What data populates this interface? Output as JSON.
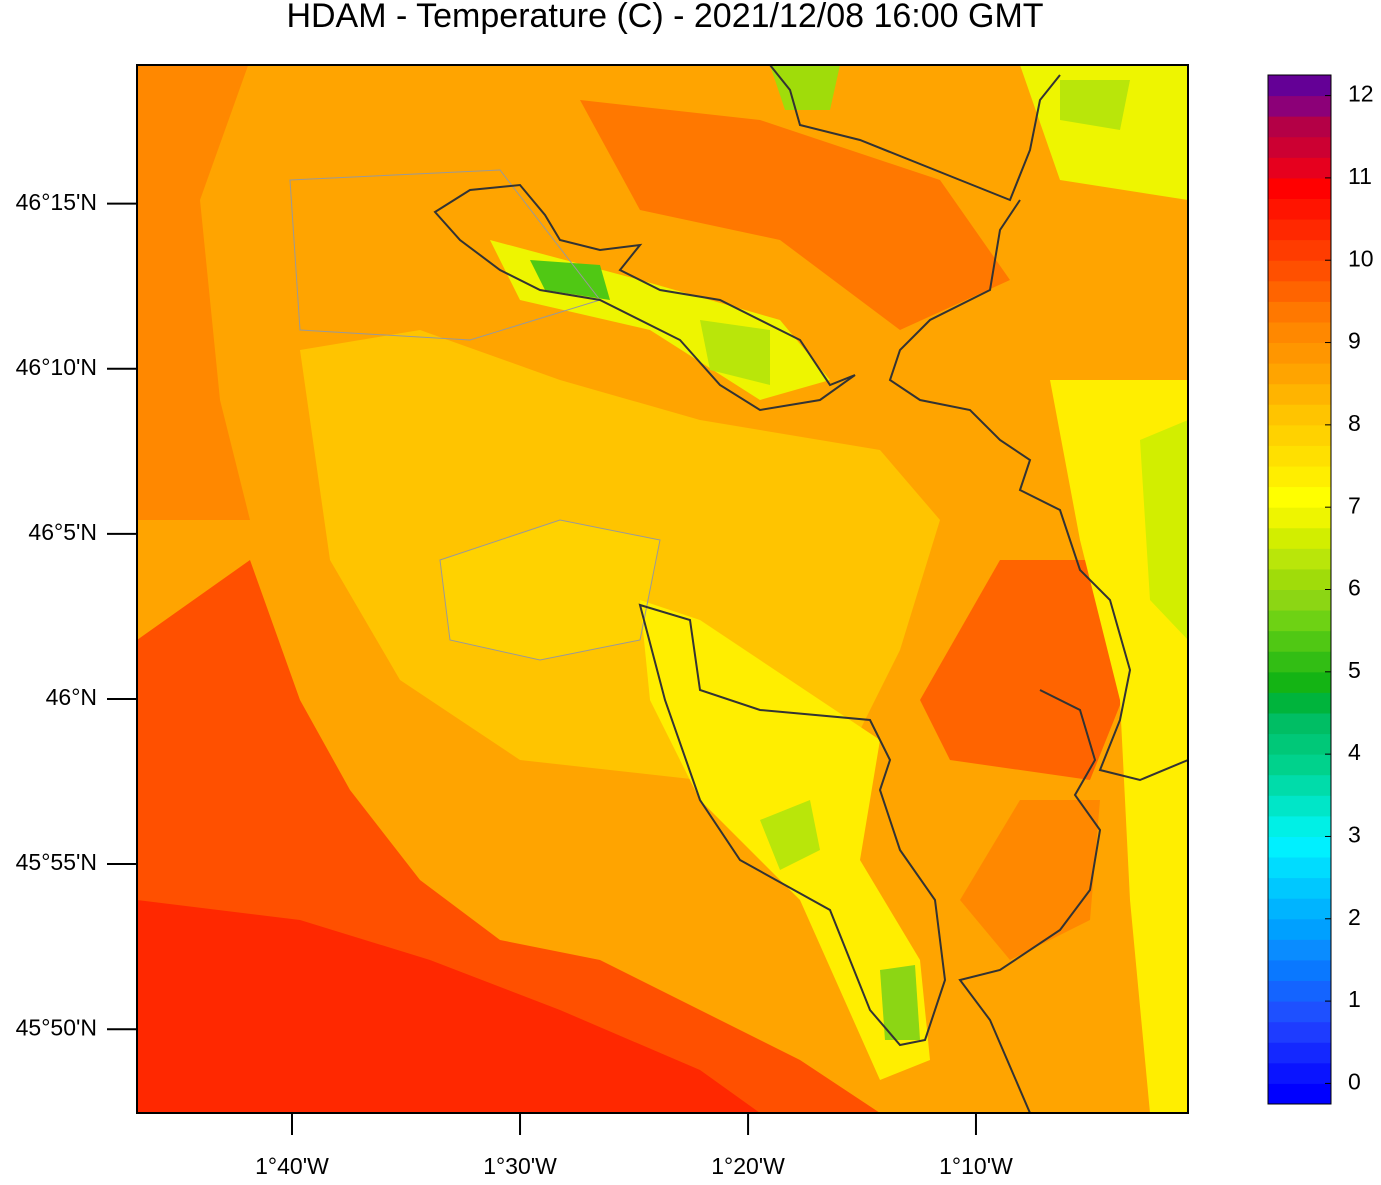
{
  "chart_data": {
    "type": "map",
    "title": "HDAM - Temperature (C)  -  2021/12/08  16:00 GMT",
    "xlim": [
      -1.78,
      -1.0117
    ],
    "ylim": [
      45.791,
      46.32
    ],
    "xticks": [
      {
        "value": -1.6667,
        "label": "1°40'W"
      },
      {
        "value": -1.5,
        "label": "1°30'W"
      },
      {
        "value": -1.3333,
        "label": "1°20'W"
      },
      {
        "value": -1.1667,
        "label": "1°10'W"
      }
    ],
    "yticks": [
      {
        "value": 45.8333,
        "label": "45°50'N"
      },
      {
        "value": 45.9167,
        "label": "45°55'N"
      },
      {
        "value": 46.0,
        "label": "46°N"
      },
      {
        "value": 46.0833,
        "label": "46°5'N"
      },
      {
        "value": 46.1667,
        "label": "46°10'N"
      },
      {
        "value": 46.25,
        "label": "46°15'N"
      }
    ],
    "colorbar": {
      "lim": [
        -0.25,
        12.25
      ],
      "ticks": [
        0,
        1,
        2,
        3,
        4,
        5,
        6,
        7,
        8,
        9,
        10,
        11,
        12
      ],
      "colors": [
        "#0000ff",
        "#0a14ff",
        "#1428ff",
        "#1e3cff",
        "#1e50ff",
        "#1464ff",
        "#0a78ff",
        "#0a8cff",
        "#00a0ff",
        "#00b4ff",
        "#00c8ff",
        "#00dcff",
        "#00f0ff",
        "#00f0e6",
        "#00e6c8",
        "#00dcaa",
        "#00d28c",
        "#00c878",
        "#00be64",
        "#00b43c",
        "#14b414",
        "#32be14",
        "#50c814",
        "#6ed214",
        "#8cd614",
        "#a0dc0a",
        "#b9e60a",
        "#d2ee00",
        "#eef500",
        "#ffff00",
        "#ffee00",
        "#ffe000",
        "#ffd200",
        "#ffc400",
        "#ffb400",
        "#ffa400",
        "#ff9600",
        "#ff8800",
        "#ff7800",
        "#ff6400",
        "#ff5000",
        "#ff3c00",
        "#ff2800",
        "#ff1400",
        "#ff0000",
        "#e6001e",
        "#cc0032",
        "#b40046",
        "#8c0078",
        "#640096"
      ]
    }
  }
}
